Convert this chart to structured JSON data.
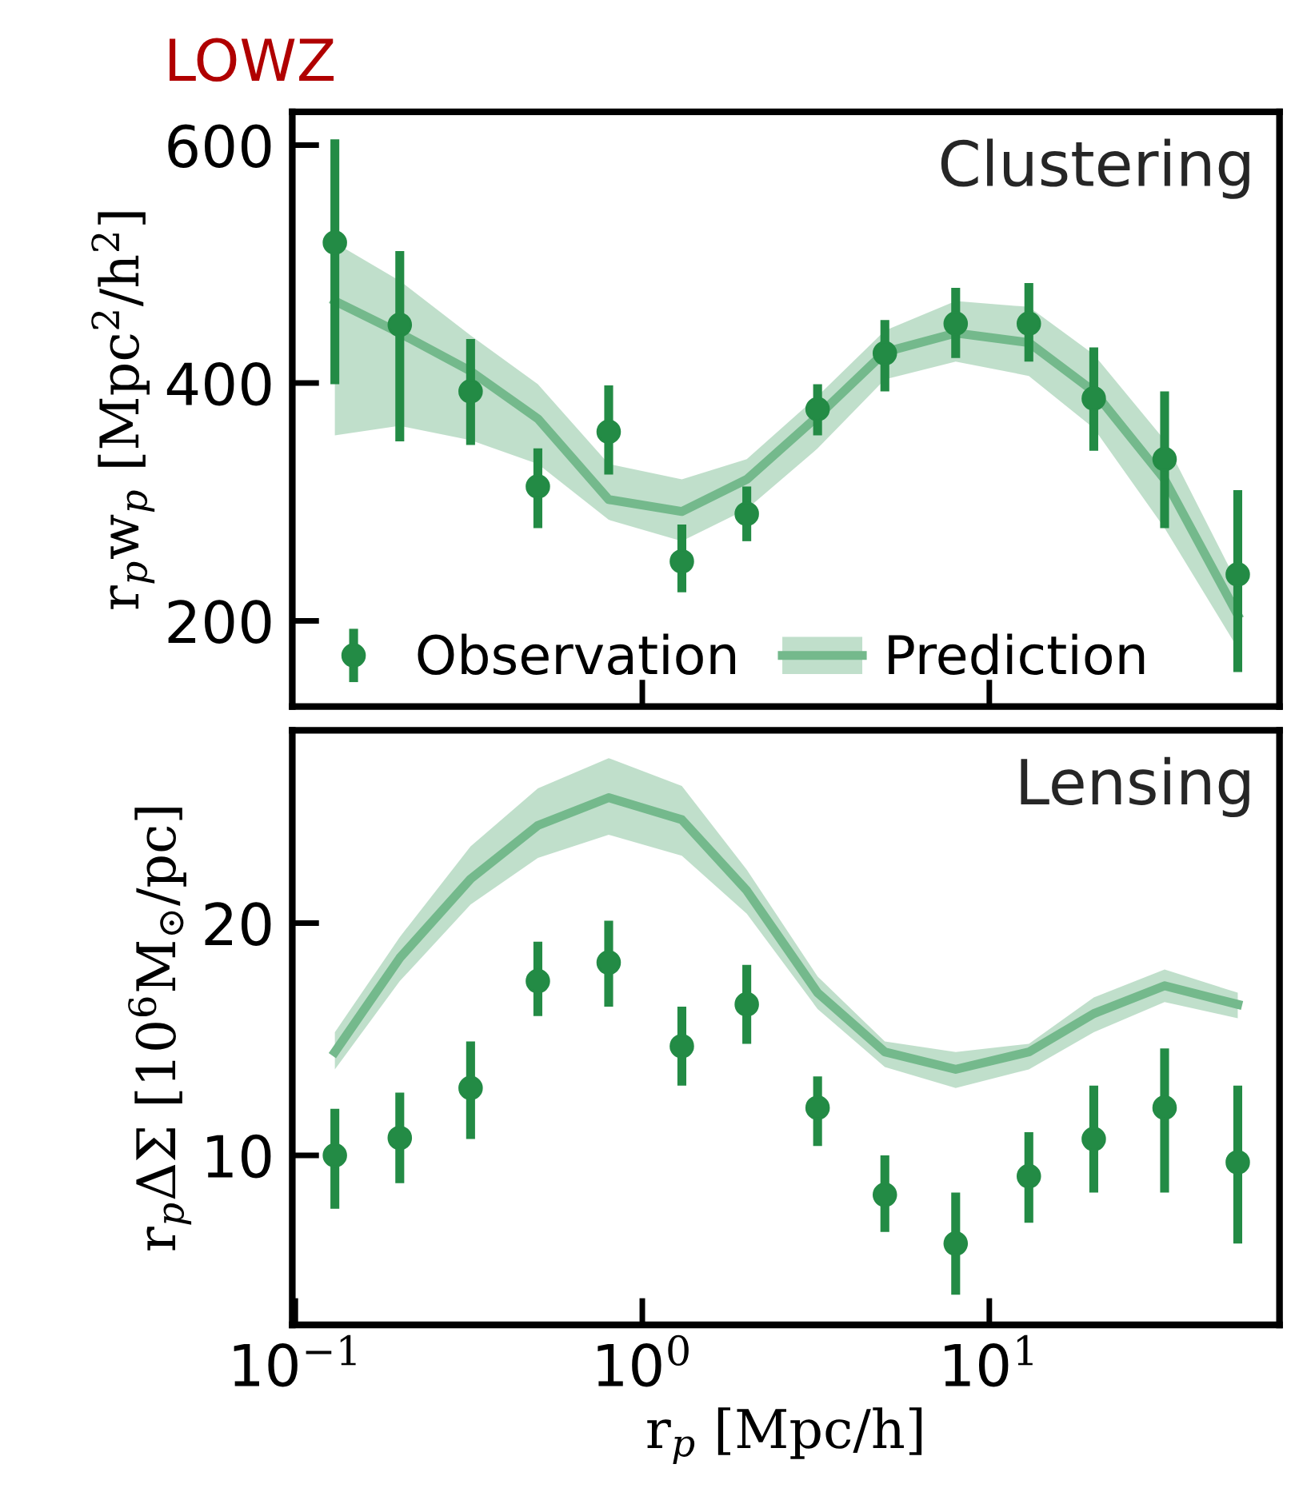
{
  "chart_data": [
    {
      "type": "line",
      "title": "LOWZ",
      "ylabel": "r$_{p}$w$_{p}$ [Mpc$^{2}$/h$^{2}$]",
      "annotations": [
        "Clustering"
      ],
      "log": "x",
      "xlim": [
        0.098,
        68.6
      ],
      "xticks": [
        {
          "value": 1,
          "label": null
        },
        {
          "value": 10,
          "label": null
        }
      ],
      "ylim": [
        128,
        628
      ],
      "yticks": [
        200,
        400,
        600
      ],
      "tick_labels": "y",
      "grid": false,
      "legend": "bottom left",
      "x": [
        0.13,
        0.2,
        0.32,
        0.5,
        0.8,
        1.3,
        2,
        3.2,
        5,
        8,
        13,
        20,
        32,
        52
      ],
      "series": [
        {
          "name": "Observation",
          "type": "scatter",
          "marker": "circle",
          "color": "#238b45",
          "values": [
            518,
            449,
            393,
            313,
            359,
            250,
            290,
            378,
            425,
            450,
            450,
            387,
            336,
            239
          ],
          "errors": [
            [
              399,
              605
            ],
            [
              351,
              511
            ],
            [
              348,
              437
            ],
            [
              278,
              345
            ],
            [
              323,
              398
            ],
            [
              224,
              281
            ],
            [
              267,
              313
            ],
            [
              356,
              399
            ],
            [
              393,
              453
            ],
            [
              421,
              480
            ],
            [
              418,
              484
            ],
            [
              343,
              430
            ],
            [
              278,
              393
            ],
            [
              157,
              310
            ]
          ]
        },
        {
          "name": "Prediction",
          "color": "#74b98c",
          "values": [
            469,
            442,
            410,
            370,
            302,
            292,
            319,
            372,
            426,
            442,
            434,
            393,
            319,
            205
          ],
          "lower": [
            356,
            364,
            352,
            332,
            285,
            267,
            294,
            345,
            403,
            418,
            406,
            362,
            278,
            177
          ],
          "upper": [
            518,
            486,
            440,
            399,
            332,
            319,
            336,
            389,
            444,
            469,
            464,
            424,
            352,
            231
          ]
        }
      ]
    },
    {
      "type": "line",
      "xlabel": "r$_{p}$ [Mpc/h]",
      "ylabel": "r$_{p}$ΔΣ [10$^{6}$M$_{⊙}$/pc]",
      "annotations": [
        "Lensing"
      ],
      "log": "x",
      "xlim": [
        0.098,
        68.6
      ],
      "xticks": [
        {
          "value": 0.1,
          "label": "10$^{−1}$"
        },
        {
          "value": 1,
          "label": "10$^{0}$"
        },
        {
          "value": 10,
          "label": "10$^{1}$"
        }
      ],
      "ylim": [
        2.7,
        28.3
      ],
      "yticks": [
        10,
        20
      ],
      "grid": false,
      "x": [
        0.13,
        0.2,
        0.32,
        0.5,
        0.8,
        1.3,
        2,
        3.2,
        5,
        8,
        13,
        20,
        32,
        52
      ],
      "series": [
        {
          "type": "scatter",
          "marker": "circle",
          "color": "#238b45",
          "values": [
            10.0,
            10.75,
            12.9,
            17.5,
            18.3,
            14.7,
            16.5,
            12.05,
            8.3,
            6.2,
            9.1,
            10.7,
            12.05,
            9.7
          ],
          "errors": [
            [
              7.7,
              12.0
            ],
            [
              8.8,
              12.7
            ],
            [
              10.7,
              14.9
            ],
            [
              16.0,
              19.2
            ],
            [
              16.4,
              20.1
            ],
            [
              13.0,
              16.4
            ],
            [
              14.8,
              18.2
            ],
            [
              10.4,
              13.4
            ],
            [
              6.7,
              10.0
            ],
            [
              4.0,
              8.4
            ],
            [
              7.1,
              11.0
            ],
            [
              8.4,
              13.0
            ],
            [
              8.4,
              14.6
            ],
            [
              6.2,
              13.0
            ]
          ]
        },
        {
          "color": "#74b98c",
          "values": [
            14.45,
            18.5,
            21.9,
            24.2,
            25.4,
            24.45,
            21.4,
            17.0,
            14.45,
            13.7,
            14.45,
            16.1,
            17.3,
            16.5
          ],
          "lower": [
            13.7,
            17.5,
            20.8,
            22.8,
            23.8,
            22.9,
            20.4,
            16.3,
            13.8,
            12.9,
            13.7,
            15.3,
            16.6,
            15.9
          ],
          "upper": [
            15.3,
            19.4,
            23.3,
            25.8,
            27.1,
            25.9,
            22.3,
            17.7,
            14.9,
            14.45,
            14.8,
            16.8,
            18.0,
            17.0
          ]
        }
      ]
    }
  ]
}
